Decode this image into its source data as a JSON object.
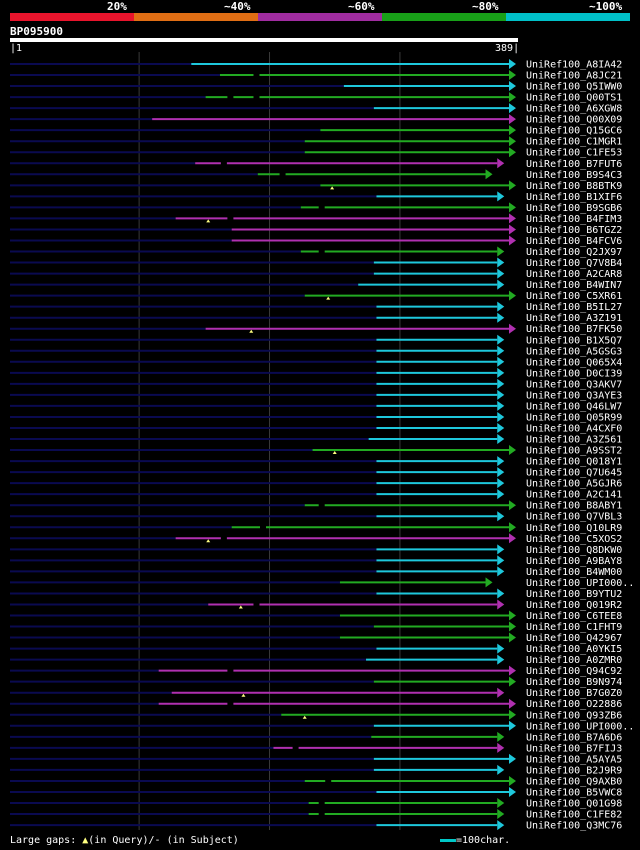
{
  "legend": {
    "segments": [
      {
        "label": "20%",
        "color": "#e8142c"
      },
      {
        "label": "~40%",
        "color": "#e06e14"
      },
      {
        "label": "~60%",
        "color": "#a02ca0"
      },
      {
        "label": "~80%",
        "color": "#18a018"
      },
      {
        "label": "~100%",
        "color": "#00c0c8"
      }
    ]
  },
  "query": {
    "name": "BP095900",
    "start_label": "1",
    "end_label": "389",
    "length": 389
  },
  "colors": {
    "cyan": "#1ec8dc",
    "green": "#22aa22",
    "magenta": "#b030b0",
    "background_line": "#0a0a50",
    "gridline": "#3a3a3a"
  },
  "gridlines": [
    100,
    200,
    300
  ],
  "hits": [
    {
      "label": "UniRef100_A8IA42",
      "start": 140,
      "end": 389,
      "color": "cyan",
      "gaps": []
    },
    {
      "label": "UniRef100_A8JC21",
      "start": 162,
      "end": 389,
      "color": "green",
      "gaps": [
        {
          "type": "subject",
          "pos": 190
        }
      ]
    },
    {
      "label": "UniRef100_Q5IWW0",
      "start": 257,
      "end": 389,
      "color": "cyan",
      "gaps": []
    },
    {
      "label": "UniRef100_Q00TS1",
      "start": 151,
      "end": 389,
      "color": "green",
      "gaps": [
        {
          "type": "subject",
          "pos": 170
        },
        {
          "type": "subject",
          "pos": 190
        }
      ]
    },
    {
      "label": "UniRef100_A6XGW8",
      "start": 280,
      "end": 389,
      "color": "cyan",
      "gaps": []
    },
    {
      "label": "UniRef100_Q00X09",
      "start": 110,
      "end": 389,
      "color": "magenta",
      "gaps": []
    },
    {
      "label": "UniRef100_Q15GC6",
      "start": 239,
      "end": 389,
      "color": "green",
      "gaps": []
    },
    {
      "label": "UniRef100_C1MGR1",
      "start": 227,
      "end": 389,
      "color": "green",
      "gaps": []
    },
    {
      "label": "UniRef100_C1FE53",
      "start": 227,
      "end": 389,
      "color": "green",
      "gaps": []
    },
    {
      "label": "UniRef100_B7FUT6",
      "start": 143,
      "end": 380,
      "color": "magenta",
      "gaps": [
        {
          "type": "subject",
          "pos": 165
        }
      ]
    },
    {
      "label": "UniRef100_B9S4C3",
      "start": 191,
      "end": 371,
      "color": "green",
      "gaps": [
        {
          "type": "subject",
          "pos": 210
        }
      ]
    },
    {
      "label": "UniRef100_B8BTK9",
      "start": 239,
      "end": 389,
      "color": "green",
      "gaps": [
        {
          "type": "query",
          "pos": 248
        }
      ]
    },
    {
      "label": "UniRef100_B1XIF6",
      "start": 282,
      "end": 380,
      "color": "cyan",
      "gaps": []
    },
    {
      "label": "UniRef100_B9SGB6",
      "start": 224,
      "end": 389,
      "color": "green",
      "gaps": [
        {
          "type": "subject",
          "pos": 240
        }
      ]
    },
    {
      "label": "UniRef100_B4FIM3",
      "start": 128,
      "end": 389,
      "color": "magenta",
      "gaps": [
        {
          "type": "query",
          "pos": 153
        },
        {
          "type": "subject",
          "pos": 170
        }
      ]
    },
    {
      "label": "UniRef100_B6TGZ2",
      "start": 171,
      "end": 389,
      "color": "magenta",
      "gaps": []
    },
    {
      "label": "UniRef100_B4FCV6",
      "start": 171,
      "end": 389,
      "color": "magenta",
      "gaps": []
    },
    {
      "label": "UniRef100_Q2JX97",
      "start": 224,
      "end": 380,
      "color": "green",
      "gaps": [
        {
          "type": "subject",
          "pos": 240
        }
      ]
    },
    {
      "label": "UniRef100_Q7V8B4",
      "start": 280,
      "end": 380,
      "color": "cyan",
      "gaps": []
    },
    {
      "label": "UniRef100_A2CAR8",
      "start": 280,
      "end": 380,
      "color": "cyan",
      "gaps": []
    },
    {
      "label": "UniRef100_B4WIN7",
      "start": 268,
      "end": 380,
      "color": "cyan",
      "gaps": []
    },
    {
      "label": "UniRef100_C5XR61",
      "start": 227,
      "end": 389,
      "color": "green",
      "gaps": [
        {
          "type": "query",
          "pos": 245
        }
      ]
    },
    {
      "label": "UniRef100_B5IL27",
      "start": 282,
      "end": 380,
      "color": "cyan",
      "gaps": []
    },
    {
      "label": "UniRef100_A3Z191",
      "start": 282,
      "end": 380,
      "color": "cyan",
      "gaps": []
    },
    {
      "label": "UniRef100_B7FK50",
      "start": 151,
      "end": 389,
      "color": "magenta",
      "gaps": [
        {
          "type": "query",
          "pos": 186
        }
      ]
    },
    {
      "label": "UniRef100_B1X5Q7",
      "start": 282,
      "end": 380,
      "color": "cyan",
      "gaps": []
    },
    {
      "label": "UniRef100_A5GSG3",
      "start": 282,
      "end": 380,
      "color": "cyan",
      "gaps": []
    },
    {
      "label": "UniRef100_Q065X4",
      "start": 282,
      "end": 380,
      "color": "cyan",
      "gaps": []
    },
    {
      "label": "UniRef100_D0CI39",
      "start": 282,
      "end": 380,
      "color": "cyan",
      "gaps": []
    },
    {
      "label": "UniRef100_Q3AKV7",
      "start": 282,
      "end": 380,
      "color": "cyan",
      "gaps": []
    },
    {
      "label": "UniRef100_Q3AYE3",
      "start": 282,
      "end": 380,
      "color": "cyan",
      "gaps": []
    },
    {
      "label": "UniRef100_Q46LW7",
      "start": 282,
      "end": 380,
      "color": "cyan",
      "gaps": []
    },
    {
      "label": "UniRef100_Q05R99",
      "start": 282,
      "end": 380,
      "color": "cyan",
      "gaps": []
    },
    {
      "label": "UniRef100_A4CXF0",
      "start": 282,
      "end": 380,
      "color": "cyan",
      "gaps": []
    },
    {
      "label": "UniRef100_A3Z561",
      "start": 276,
      "end": 380,
      "color": "cyan",
      "gaps": []
    },
    {
      "label": "UniRef100_A9SST2",
      "start": 233,
      "end": 389,
      "color": "green",
      "gaps": [
        {
          "type": "query",
          "pos": 250
        }
      ]
    },
    {
      "label": "UniRef100_Q018Y1",
      "start": 282,
      "end": 380,
      "color": "cyan",
      "gaps": []
    },
    {
      "label": "UniRef100_Q7U645",
      "start": 282,
      "end": 380,
      "color": "cyan",
      "gaps": []
    },
    {
      "label": "UniRef100_A5GJR6",
      "start": 282,
      "end": 380,
      "color": "cyan",
      "gaps": []
    },
    {
      "label": "UniRef100_A2C141",
      "start": 282,
      "end": 380,
      "color": "cyan",
      "gaps": []
    },
    {
      "label": "UniRef100_B8ABY1",
      "start": 227,
      "end": 389,
      "color": "green",
      "gaps": [
        {
          "type": "subject",
          "pos": 240
        }
      ]
    },
    {
      "label": "UniRef100_Q7VBL3",
      "start": 282,
      "end": 380,
      "color": "cyan",
      "gaps": []
    },
    {
      "label": "UniRef100_Q10LR9",
      "start": 171,
      "end": 389,
      "color": "green",
      "gaps": [
        {
          "type": "subject",
          "pos": 195
        }
      ]
    },
    {
      "label": "UniRef100_C5XOS2",
      "start": 128,
      "end": 389,
      "color": "magenta",
      "gaps": [
        {
          "type": "query",
          "pos": 153
        },
        {
          "type": "subject",
          "pos": 165
        }
      ]
    },
    {
      "label": "UniRef100_Q8DKW0",
      "start": 282,
      "end": 380,
      "color": "cyan",
      "gaps": []
    },
    {
      "label": "UniRef100_A9BAY8",
      "start": 282,
      "end": 380,
      "color": "cyan",
      "gaps": []
    },
    {
      "label": "UniRef100_B4WM00",
      "start": 282,
      "end": 380,
      "color": "cyan",
      "gaps": []
    },
    {
      "label": "UniRef100_UPI000..",
      "start": 254,
      "end": 371,
      "color": "green",
      "gaps": []
    },
    {
      "label": "UniRef100_B9YTU2",
      "start": 282,
      "end": 380,
      "color": "cyan",
      "gaps": []
    },
    {
      "label": "UniRef100_Q019R2",
      "start": 153,
      "end": 380,
      "color": "magenta",
      "gaps": [
        {
          "type": "query",
          "pos": 178
        },
        {
          "type": "subject",
          "pos": 190
        }
      ]
    },
    {
      "label": "UniRef100_C6TEE8",
      "start": 254,
      "end": 389,
      "color": "green",
      "gaps": []
    },
    {
      "label": "UniRef100_C1FHT9",
      "start": 280,
      "end": 389,
      "color": "green",
      "gaps": []
    },
    {
      "label": "UniRef100_Q42967",
      "start": 254,
      "end": 389,
      "color": "green",
      "gaps": []
    },
    {
      "label": "UniRef100_A0YKI5",
      "start": 282,
      "end": 380,
      "color": "cyan",
      "gaps": []
    },
    {
      "label": "UniRef100_A0ZMR0",
      "start": 274,
      "end": 380,
      "color": "cyan",
      "gaps": []
    },
    {
      "label": "UniRef100_Q94C92",
      "start": 115,
      "end": 389,
      "color": "magenta",
      "gaps": [
        {
          "type": "subject",
          "pos": 170
        }
      ]
    },
    {
      "label": "UniRef100_B9N974",
      "start": 280,
      "end": 389,
      "color": "green",
      "gaps": []
    },
    {
      "label": "UniRef100_B7G0Z0",
      "start": 125,
      "end": 380,
      "color": "magenta",
      "gaps": [
        {
          "type": "query",
          "pos": 180
        }
      ]
    },
    {
      "label": "UniRef100_O22886",
      "start": 115,
      "end": 389,
      "color": "magenta",
      "gaps": [
        {
          "type": "subject",
          "pos": 170
        }
      ]
    },
    {
      "label": "UniRef100_Q93ZB6",
      "start": 209,
      "end": 389,
      "color": "green",
      "gaps": [
        {
          "type": "query",
          "pos": 227
        }
      ]
    },
    {
      "label": "UniRef100_UPI000..",
      "start": 280,
      "end": 389,
      "color": "cyan",
      "gaps": []
    },
    {
      "label": "UniRef100_B7A6D6",
      "start": 278,
      "end": 380,
      "color": "green",
      "gaps": []
    },
    {
      "label": "UniRef100_B7FIJ3",
      "start": 203,
      "end": 380,
      "color": "magenta",
      "gaps": [
        {
          "type": "subject",
          "pos": 220
        }
      ]
    },
    {
      "label": "UniRef100_A5AYA5",
      "start": 280,
      "end": 389,
      "color": "cyan",
      "gaps": []
    },
    {
      "label": "UniRef100_B2J9R9",
      "start": 280,
      "end": 380,
      "color": "cyan",
      "gaps": []
    },
    {
      "label": "UniRef100_Q9AXB0",
      "start": 227,
      "end": 389,
      "color": "green",
      "gaps": [
        {
          "type": "subject",
          "pos": 245
        }
      ]
    },
    {
      "label": "UniRef100_B5VWC8",
      "start": 282,
      "end": 389,
      "color": "cyan",
      "gaps": []
    },
    {
      "label": "UniRef100_Q01G98",
      "start": 230,
      "end": 380,
      "color": "green",
      "gaps": [
        {
          "type": "subject",
          "pos": 240
        }
      ]
    },
    {
      "label": "UniRef100_C1FE82",
      "start": 230,
      "end": 380,
      "color": "green",
      "gaps": [
        {
          "type": "subject",
          "pos": 240
        }
      ]
    },
    {
      "label": "UniRef100_Q3MC76",
      "start": 282,
      "end": 380,
      "color": "cyan",
      "gaps": []
    }
  ],
  "footer": {
    "text_prefix": "Large gaps: ",
    "query_symbol": "▲",
    "query_text": "(in Query)/",
    "subject_symbol": "-",
    "subject_text": " (in Subject)",
    "scale_text": "=100char."
  }
}
